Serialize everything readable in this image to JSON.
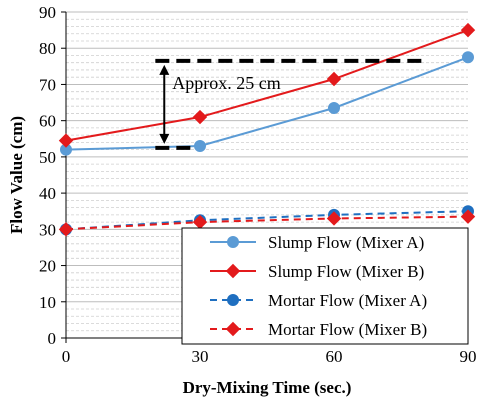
{
  "chart_data": {
    "type": "line",
    "title": "",
    "xlabel": "Dry-Mixing Time (sec.)",
    "ylabel": "Flow Value (cm)",
    "x": [
      0,
      30,
      60,
      90
    ],
    "xlim": [
      0,
      90
    ],
    "ylim": [
      0,
      90
    ],
    "x_ticks": [
      "0",
      "30",
      "60",
      "90"
    ],
    "y_ticks": [
      "0",
      "10",
      "20",
      "30",
      "40",
      "50",
      "60",
      "70",
      "80",
      "90"
    ],
    "grid": "major solid + minor dashed horizontal",
    "legend_position": "bottom-right",
    "series": [
      {
        "name": "Slump Flow (Mixer A)",
        "values": [
          52,
          53,
          63.5,
          77.5
        ],
        "color": "#5b9bd5",
        "marker": "circle",
        "dash": "solid"
      },
      {
        "name": "Slump Flow (Mixer B)",
        "values": [
          54.5,
          61,
          71.5,
          85
        ],
        "color": "#e31a1c",
        "marker": "diamond",
        "dash": "solid"
      },
      {
        "name": "Mortar Flow (Mixer A)",
        "values": [
          30,
          32.5,
          34,
          35
        ],
        "color": "#1f6fc0",
        "marker": "circle",
        "dash": "dashed"
      },
      {
        "name": "Mortar Flow (Mixer B)",
        "values": [
          30,
          32,
          33,
          33.5
        ],
        "color": "#e31a1c",
        "marker": "diamond",
        "dash": "dashed"
      }
    ],
    "annotation": {
      "text": "Approx. 25 cm",
      "upper_level": 76.5,
      "lower_level": 52.5,
      "upper_line_x": [
        20,
        80
      ],
      "lower_line_x": [
        20,
        28
      ],
      "arrow_x": 22
    }
  }
}
